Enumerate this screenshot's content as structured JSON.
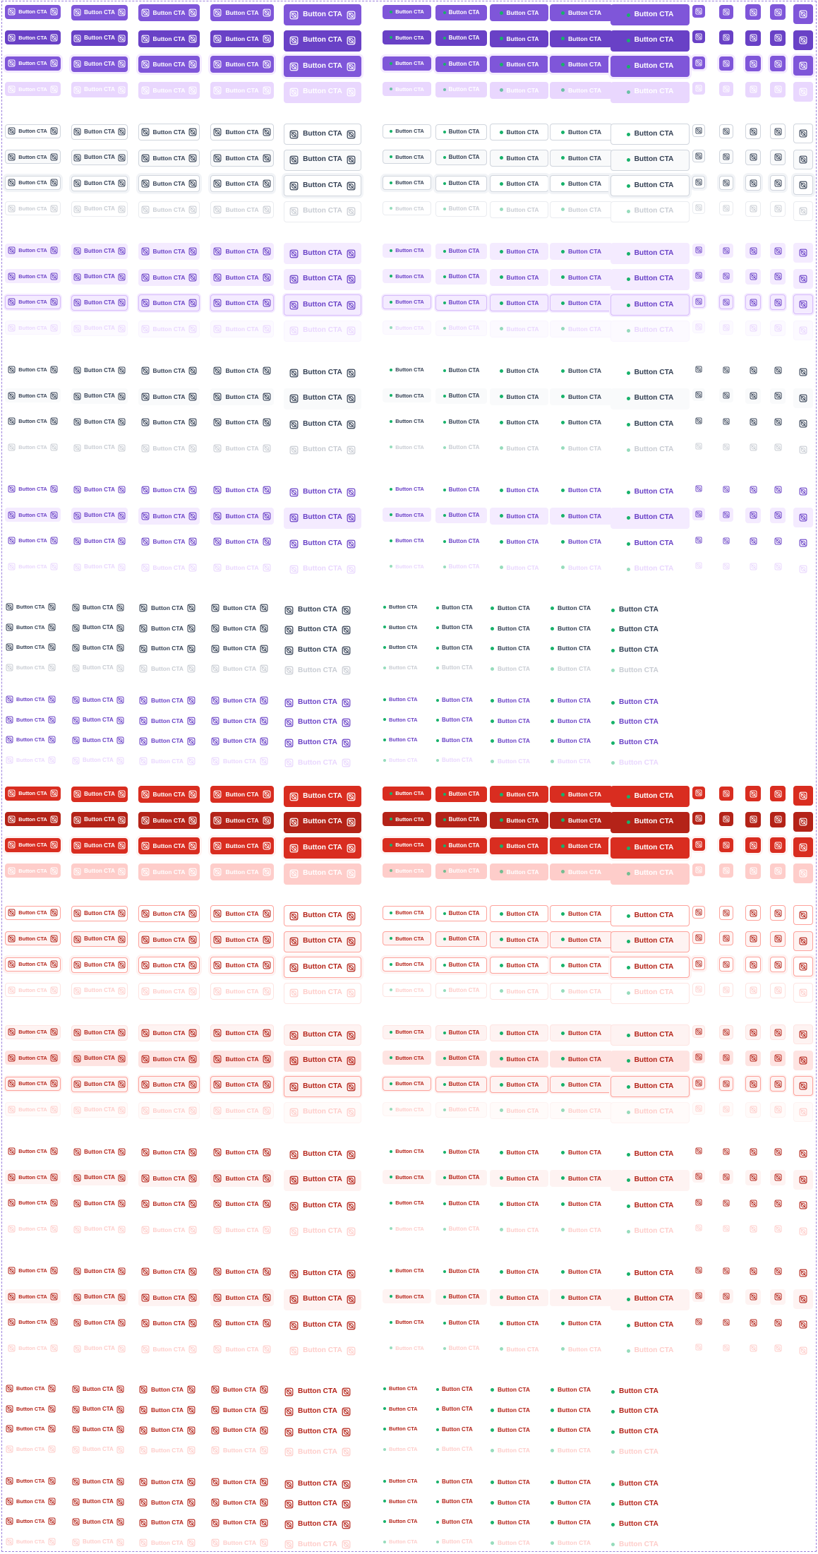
{
  "page": {
    "title": ""
  },
  "button": {
    "label": "Button CTA"
  },
  "icons": {
    "placeholder": "placeholder-icon",
    "status": "status-dot"
  },
  "colors": {
    "frame": "#9b7fdc",
    "purple": "#7f56d9",
    "purple_dark": "#6941c6",
    "purple_light": "#f4ebff",
    "purple_disabled": "#e9d7fe",
    "purple_border": "#d6bbfb",
    "gray_text": "#344054",
    "gray_border": "#d0d5dd",
    "gray_fill": "#f9fafb",
    "gray_disabled": "#c8ccd3",
    "red": "#d92d20",
    "red_dark": "#b42318",
    "red_light": "#fef3f2",
    "red_disabled": "#fecdca",
    "red_border": "#fda29b",
    "dot": "#17b26a",
    "white": "#ffffff"
  },
  "states": [
    "default",
    "hover",
    "focused",
    "disabled"
  ],
  "sizes": [
    "sm",
    "md",
    "lg",
    "xl",
    "2xl"
  ],
  "variants": [
    "leading-trailing-icon",
    "dot-leading",
    "icon-only"
  ],
  "groups": [
    {
      "name": "primary",
      "hierarchy": "Primary",
      "destructive": false,
      "icon_only_column": true
    },
    {
      "name": "secondary-gray",
      "hierarchy": "Secondary gray",
      "destructive": false,
      "icon_only_column": true
    },
    {
      "name": "secondary-color",
      "hierarchy": "Secondary color",
      "destructive": false,
      "icon_only_column": true
    },
    {
      "name": "tertiary-gray",
      "hierarchy": "Tertiary gray",
      "destructive": false,
      "icon_only_column": true
    },
    {
      "name": "tertiary-color",
      "hierarchy": "Tertiary color",
      "destructive": false,
      "icon_only_column": true
    },
    {
      "name": "link-gray",
      "hierarchy": "Link gray",
      "destructive": false,
      "icon_only_column": false
    },
    {
      "name": "link-color",
      "hierarchy": "Link color",
      "destructive": false,
      "icon_only_column": false
    },
    {
      "name": "primary-destructive",
      "hierarchy": "Primary",
      "destructive": true,
      "icon_only_column": true
    },
    {
      "name": "secondary-gray-destructive",
      "hierarchy": "Secondary gray",
      "destructive": true,
      "icon_only_column": true
    },
    {
      "name": "secondary-color-destructive",
      "hierarchy": "Secondary color",
      "destructive": true,
      "icon_only_column": true
    },
    {
      "name": "tertiary-gray-destructive",
      "hierarchy": "Tertiary gray",
      "destructive": true,
      "icon_only_column": true
    },
    {
      "name": "tertiary-color-destructive",
      "hierarchy": "Tertiary color",
      "destructive": true,
      "icon_only_column": true
    },
    {
      "name": "link-gray-destructive",
      "hierarchy": "Link gray",
      "destructive": true,
      "icon_only_column": false
    },
    {
      "name": "link-color-destructive",
      "hierarchy": "Link color",
      "destructive": true,
      "icon_only_column": false
    }
  ]
}
